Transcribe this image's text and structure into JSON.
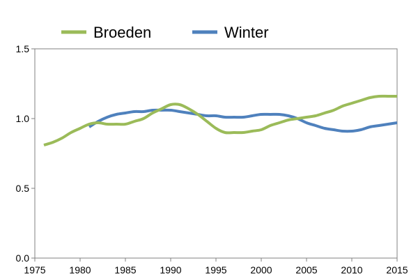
{
  "chart_data": {
    "type": "line",
    "title": "",
    "xlabel": "",
    "ylabel": "",
    "xlim": [
      1975,
      2015
    ],
    "ylim": [
      0,
      1.5
    ],
    "xticks": [
      "1975",
      "1980",
      "1985",
      "1990",
      "1995",
      "2000",
      "2005",
      "2010",
      "2015"
    ],
    "yticks": [
      "0.0",
      "0.5",
      "1.0",
      "1.5"
    ],
    "grid": false,
    "legend_position": "top",
    "series": [
      {
        "name": "Broeden",
        "color": "#9BBB59",
        "x": [
          1976,
          1977,
          1978,
          1979,
          1980,
          1981,
          1982,
          1983,
          1984,
          1985,
          1986,
          1987,
          1988,
          1989,
          1990,
          1991,
          1992,
          1993,
          1994,
          1995,
          1996,
          1997,
          1998,
          1999,
          2000,
          2001,
          2002,
          2003,
          2004,
          2005,
          2006,
          2007,
          2008,
          2009,
          2010,
          2011,
          2012,
          2013,
          2014,
          2015
        ],
        "y": [
          0.81,
          0.83,
          0.86,
          0.9,
          0.93,
          0.96,
          0.97,
          0.96,
          0.96,
          0.96,
          0.98,
          1.0,
          1.04,
          1.07,
          1.1,
          1.1,
          1.07,
          1.03,
          0.98,
          0.93,
          0.9,
          0.9,
          0.9,
          0.91,
          0.92,
          0.95,
          0.97,
          0.99,
          1.0,
          1.01,
          1.02,
          1.04,
          1.06,
          1.09,
          1.11,
          1.13,
          1.15,
          1.16,
          1.16,
          1.16
        ]
      },
      {
        "name": "Winter",
        "color": "#4F81BD",
        "x": [
          1981,
          1982,
          1983,
          1984,
          1985,
          1986,
          1987,
          1988,
          1989,
          1990,
          1991,
          1992,
          1993,
          1994,
          1995,
          1996,
          1997,
          1998,
          1999,
          2000,
          2001,
          2002,
          2003,
          2004,
          2005,
          2006,
          2007,
          2008,
          2009,
          2010,
          2011,
          2012,
          2013,
          2014,
          2015
        ],
        "y": [
          0.94,
          0.98,
          1.01,
          1.03,
          1.04,
          1.05,
          1.05,
          1.06,
          1.06,
          1.06,
          1.05,
          1.04,
          1.03,
          1.02,
          1.02,
          1.01,
          1.01,
          1.01,
          1.02,
          1.03,
          1.03,
          1.03,
          1.02,
          1.0,
          0.97,
          0.95,
          0.93,
          0.92,
          0.91,
          0.91,
          0.92,
          0.94,
          0.95,
          0.96,
          0.97
        ]
      }
    ]
  }
}
